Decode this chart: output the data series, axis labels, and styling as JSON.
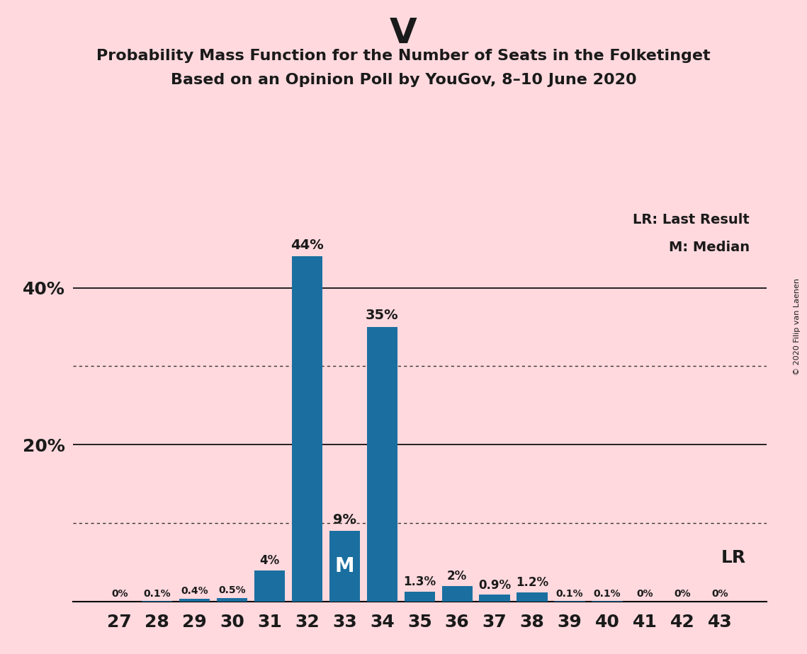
{
  "title": "V",
  "subtitle1": "Probability Mass Function for the Number of Seats in the Folketinget",
  "subtitle2": "Based on an Opinion Poll by YouGov, 8–10 June 2020",
  "copyright": "© 2020 Filip van Laenen",
  "categories": [
    27,
    28,
    29,
    30,
    31,
    32,
    33,
    34,
    35,
    36,
    37,
    38,
    39,
    40,
    41,
    42,
    43
  ],
  "values": [
    0.0,
    0.1,
    0.4,
    0.5,
    4.0,
    44.0,
    9.0,
    35.0,
    1.3,
    2.0,
    0.9,
    1.2,
    0.1,
    0.1,
    0.0,
    0.0,
    0.0
  ],
  "labels": [
    "0%",
    "0.1%",
    "0.4%",
    "0.5%",
    "4%",
    "44%",
    "9%",
    "35%",
    "1.3%",
    "2%",
    "0.9%",
    "1.2%",
    "0.1%",
    "0.1%",
    "0%",
    "0%",
    "0%"
  ],
  "bar_color": "#1a6fa0",
  "background_color": "#ffd9de",
  "text_color": "#1a1a1a",
  "ylim": [
    0,
    50
  ],
  "solid_gridlines": [
    20,
    40
  ],
  "dotted_gridlines": [
    10,
    30
  ],
  "median_bar": 33,
  "lr_bar": 43,
  "legend_lr": "LR: Last Result",
  "legend_m": "M: Median",
  "ytick_positions": [
    20,
    40
  ],
  "ytick_labels": [
    "20%",
    "40%"
  ]
}
